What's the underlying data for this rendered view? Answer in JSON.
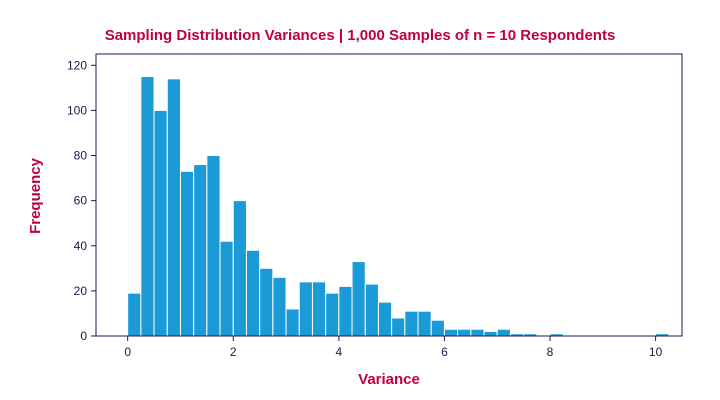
{
  "chart_data": {
    "type": "bar",
    "title": "Sampling Distribution Variances | 1,000 Samples of n = 10 Respondents",
    "xlabel": "Variance",
    "ylabel": "Frequency",
    "xlim": [
      -0.6,
      10.5
    ],
    "ylim": [
      0,
      125
    ],
    "xticks": [
      0,
      2,
      4,
      6,
      8,
      10
    ],
    "yticks": [
      0,
      20,
      40,
      60,
      80,
      100,
      120
    ],
    "bin_width": 0.25,
    "bin_start": 0,
    "values": [
      19,
      115,
      100,
      114,
      73,
      76,
      80,
      42,
      60,
      38,
      30,
      26,
      12,
      24,
      24,
      19,
      22,
      33,
      23,
      15,
      8,
      11,
      11,
      7,
      3,
      3,
      3,
      2,
      3,
      1,
      1,
      0,
      1,
      0,
      0,
      0,
      0,
      0,
      0,
      0,
      1
    ],
    "grid": false,
    "bar_color": "#1a9ad6",
    "frame_color": "#1a1a4e",
    "text_color": "#c00040"
  }
}
